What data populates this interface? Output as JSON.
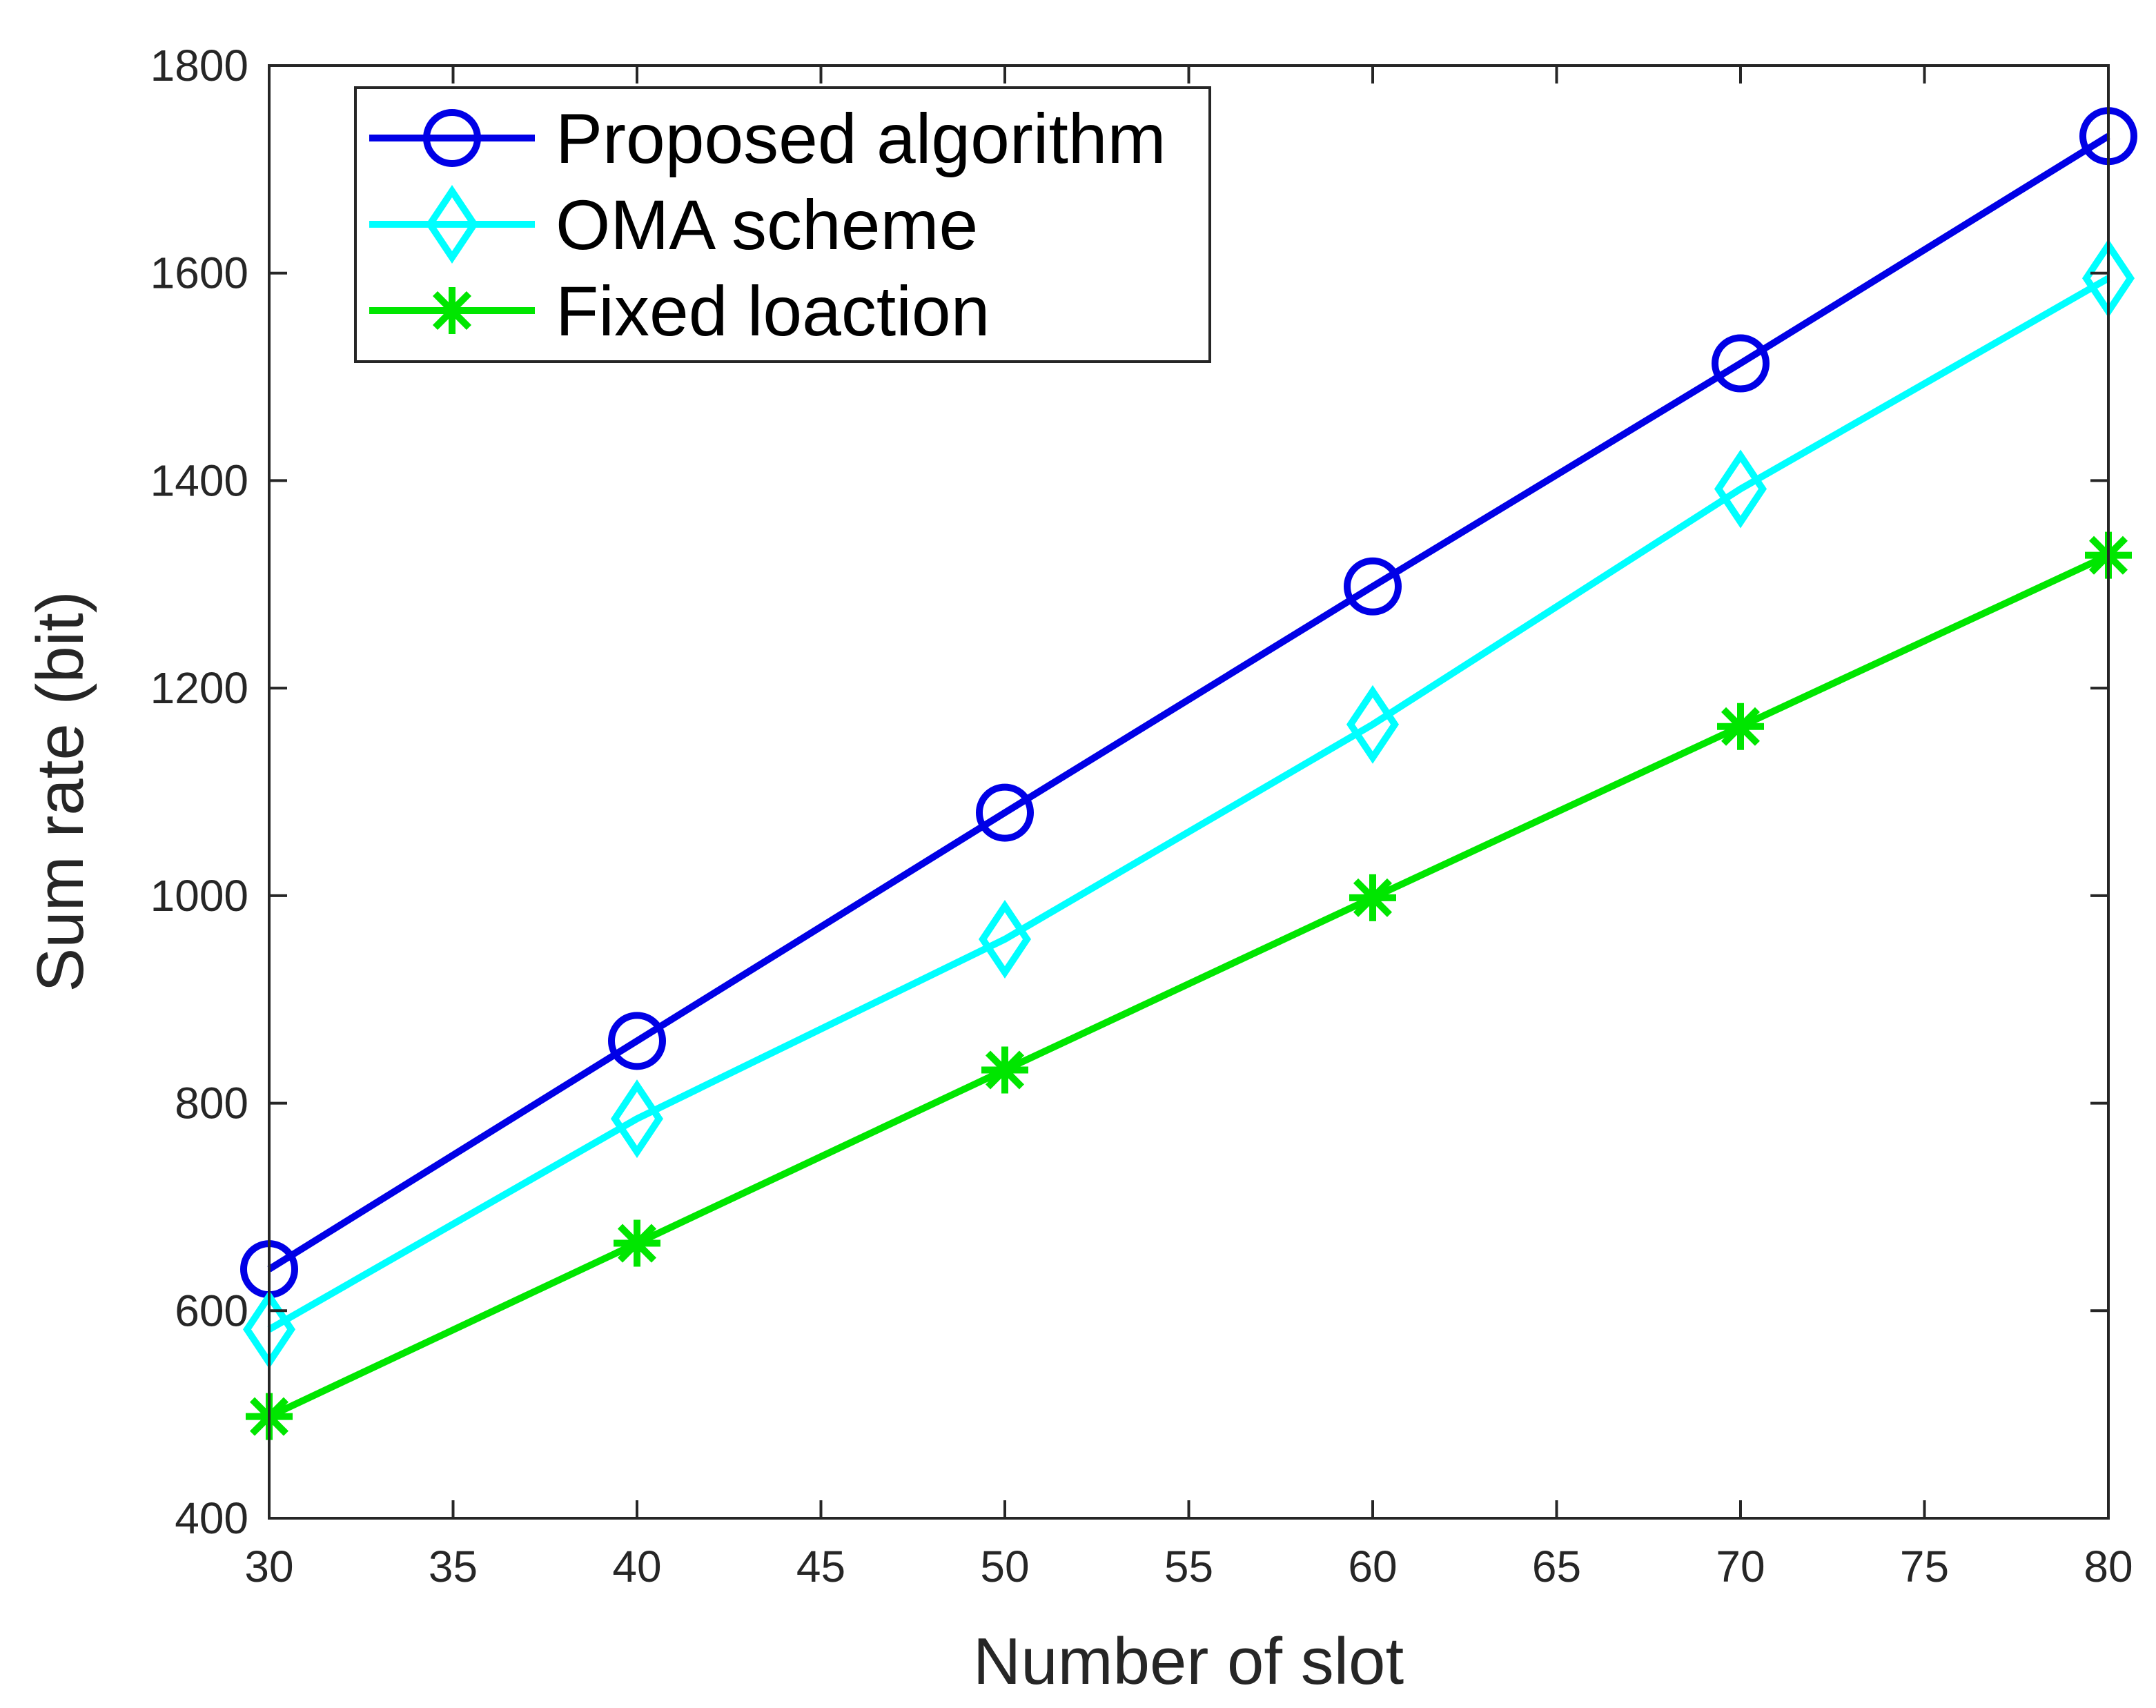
{
  "chart_data": {
    "type": "line",
    "title": "",
    "xlabel": "Number of slot",
    "ylabel": "Sum rate (bit)",
    "xlim": [
      30,
      80
    ],
    "ylim": [
      400,
      1800
    ],
    "xticks": [
      "30",
      "35",
      "40",
      "45",
      "50",
      "55",
      "60",
      "65",
      "70",
      "75",
      "80"
    ],
    "yticks": [
      "400",
      "600",
      "800",
      "1000",
      "1200",
      "1400",
      "1600",
      "1800"
    ],
    "grid": false,
    "legend_position": "top-left",
    "x": [
      30,
      40,
      50,
      60,
      70,
      80
    ],
    "series": [
      {
        "name": "Proposed algorithm",
        "marker": "circle",
        "color": "#0000e6",
        "values": [
          640,
          860,
          1080,
          1298,
          1513,
          1732
        ]
      },
      {
        "name": "OMA scheme",
        "marker": "diamond",
        "color": "#00ffff",
        "values": [
          582,
          785,
          958,
          1165,
          1392,
          1595
        ]
      },
      {
        "name": "Fixed loaction",
        "marker": "asterisk",
        "color": "#00e600",
        "values": [
          498,
          665,
          832,
          998,
          1163,
          1328
        ]
      }
    ]
  }
}
